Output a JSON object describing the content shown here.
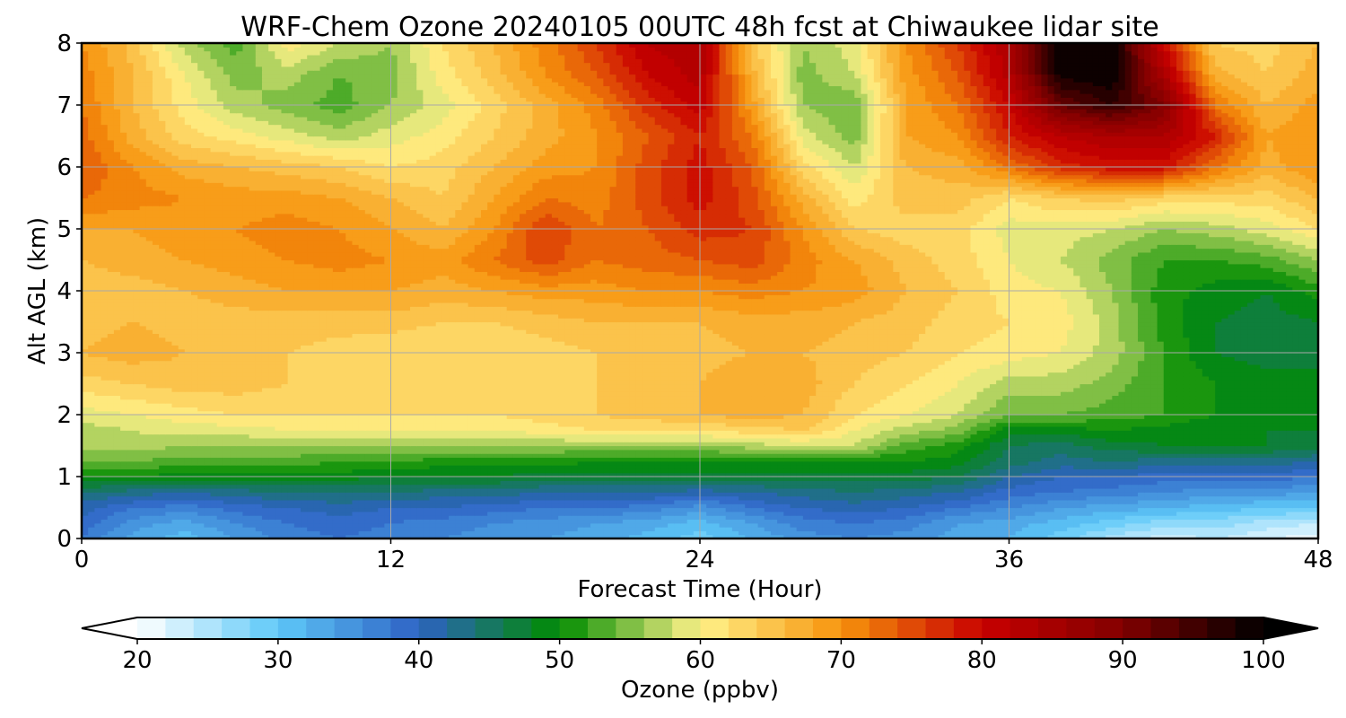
{
  "chart_data": {
    "type": "heatmap",
    "title": "WRF-Chem Ozone  20240105 00UTC 48h fcst at Chiwaukee lidar site",
    "xlabel": "Forecast Time (Hour)",
    "ylabel": "Alt AGL (km)",
    "xlim": [
      0,
      48
    ],
    "ylim": [
      0,
      8
    ],
    "xticks": [
      0,
      12,
      24,
      36,
      48
    ],
    "xtick_labels": [
      "0",
      "12",
      "24",
      "36",
      "48"
    ],
    "yticks": [
      0,
      1,
      2,
      3,
      4,
      5,
      6,
      7,
      8
    ],
    "ytick_labels": [
      "0",
      "1",
      "2",
      "3",
      "4",
      "5",
      "6",
      "7",
      "8"
    ],
    "grid": true,
    "colorbar": {
      "label": "Ozone  (ppbv)",
      "vmin": 20,
      "vmax": 100,
      "step": 2,
      "extend": "both",
      "ticks": [
        20,
        30,
        40,
        50,
        60,
        70,
        80,
        90,
        100
      ],
      "tick_labels": [
        "20",
        "30",
        "40",
        "50",
        "60",
        "70",
        "80",
        "90",
        "100"
      ],
      "color_stops": [
        {
          "v": 20,
          "c": "#ffffff"
        },
        {
          "v": 30,
          "c": "#5ec8f8"
        },
        {
          "v": 40,
          "c": "#2e62c4"
        },
        {
          "v": 50,
          "c": "#008c00"
        },
        {
          "v": 60,
          "c": "#fff28a"
        },
        {
          "v": 70,
          "c": "#f7940c"
        },
        {
          "v": 80,
          "c": "#c80000"
        },
        {
          "v": 90,
          "c": "#820000"
        },
        {
          "v": 100,
          "c": "#000000"
        }
      ]
    },
    "x": [
      0,
      2,
      4,
      6,
      8,
      10,
      12,
      14,
      16,
      18,
      20,
      22,
      24,
      26,
      28,
      30,
      32,
      34,
      36,
      38,
      40,
      42,
      44,
      46,
      48
    ],
    "y": [
      0,
      0.25,
      0.5,
      0.75,
      1,
      1.25,
      1.5,
      1.75,
      2,
      2.5,
      3,
      3.5,
      4,
      4.5,
      5,
      5.5,
      6,
      6.5,
      7,
      7.5,
      8
    ],
    "z": [
      [
        38,
        33,
        31,
        34,
        37,
        38,
        37,
        36,
        35,
        34,
        33,
        31,
        29,
        32,
        35,
        36,
        35,
        33,
        32,
        29,
        25,
        23,
        24,
        22,
        21
      ],
      [
        39,
        35,
        33,
        36,
        38,
        39,
        38,
        37,
        36,
        35,
        34,
        33,
        31,
        34,
        37,
        38,
        37,
        34,
        33,
        31,
        29,
        27,
        27,
        25,
        24
      ],
      [
        41,
        38,
        37,
        39,
        40,
        41,
        40,
        40,
        39,
        38,
        38,
        37,
        35,
        38,
        40,
        41,
        40,
        38,
        36,
        34,
        33,
        32,
        31,
        30,
        30
      ],
      [
        44,
        43,
        42,
        43,
        44,
        44,
        44,
        43,
        43,
        42,
        42,
        42,
        41,
        42,
        43,
        44,
        43,
        42,
        39,
        38,
        37,
        36,
        35,
        35,
        34
      ],
      [
        50,
        50,
        49,
        49,
        49,
        49,
        48,
        48,
        48,
        47,
        47,
        47,
        47,
        47,
        47,
        47,
        47,
        46,
        42,
        40,
        40,
        39,
        39,
        39,
        38
      ],
      [
        54,
        54,
        53,
        53,
        53,
        52,
        52,
        51,
        51,
        51,
        50,
        50,
        50,
        50,
        50,
        50,
        50,
        49,
        45,
        43,
        44,
        43,
        43,
        43,
        42
      ],
      [
        57,
        57,
        56,
        56,
        56,
        56,
        56,
        56,
        56,
        56,
        56,
        56,
        56,
        57,
        58,
        58,
        53,
        51,
        46,
        45,
        47,
        48,
        48,
        48,
        47
      ],
      [
        57,
        58,
        59,
        59,
        60,
        60,
        60,
        60,
        60,
        61,
        62,
        62,
        62,
        63,
        64,
        60,
        57,
        55,
        49,
        49,
        50,
        49,
        48,
        48,
        48
      ],
      [
        59,
        60,
        61,
        62,
        62,
        62,
        62,
        62,
        62,
        63,
        64,
        65,
        66,
        67,
        66,
        62,
        60,
        58,
        54,
        54,
        53,
        52,
        50,
        49,
        48
      ],
      [
        63,
        64,
        65,
        65,
        64,
        63,
        62,
        62,
        62,
        63,
        64,
        65,
        66,
        68,
        67,
        64,
        62,
        60,
        57,
        57,
        55,
        52,
        50,
        49,
        49
      ],
      [
        66,
        67,
        66,
        65,
        64,
        63,
        62,
        62,
        62,
        63,
        64,
        65,
        65,
        66,
        66,
        65,
        64,
        62,
        61,
        60,
        57,
        52,
        48,
        47,
        47
      ],
      [
        65,
        66,
        65,
        65,
        65,
        65,
        65,
        64,
        64,
        65,
        66,
        66,
        66,
        67,
        67,
        66,
        65,
        63,
        62,
        61,
        57,
        51,
        48,
        47,
        48
      ],
      [
        65,
        65,
        66,
        67,
        68,
        68,
        68,
        67,
        68,
        69,
        69,
        70,
        70,
        71,
        70,
        69,
        66,
        64,
        61,
        60,
        56,
        51,
        49,
        48,
        51
      ],
      [
        66,
        67,
        68,
        69,
        70,
        71,
        70,
        69,
        72,
        75,
        72,
        73,
        74,
        75,
        71,
        68,
        65,
        63,
        60,
        58,
        55,
        52,
        52,
        53,
        56
      ],
      [
        68,
        68,
        69,
        70,
        71,
        70,
        68,
        66,
        70,
        76,
        72,
        74,
        77,
        76,
        70,
        64,
        63,
        63,
        59,
        59,
        58,
        56,
        57,
        59,
        62
      ],
      [
        72,
        71,
        70,
        69,
        69,
        68,
        66,
        64,
        68,
        72,
        71,
        75,
        79,
        75,
        67,
        61,
        65,
        65,
        62,
        64,
        65,
        63,
        63,
        63,
        66
      ],
      [
        74,
        70,
        67,
        66,
        65,
        64,
        62,
        63,
        66,
        69,
        70,
        75,
        79,
        74,
        63,
        58,
        66,
        67,
        72,
        77,
        79,
        79,
        72,
        67,
        70
      ],
      [
        73,
        67,
        63,
        61,
        59,
        57,
        59,
        61,
        64,
        67,
        70,
        74,
        78,
        72,
        59,
        55,
        68,
        70,
        78,
        82,
        84,
        84,
        78,
        68,
        70
      ],
      [
        72,
        66,
        61,
        57,
        55,
        53,
        56,
        59,
        63,
        67,
        71,
        77,
        81,
        69,
        56,
        54,
        68,
        72,
        80,
        92,
        96,
        90,
        72,
        66,
        69
      ],
      [
        71,
        66,
        60,
        55,
        57,
        54,
        55,
        61,
        65,
        70,
        74,
        80,
        83,
        67,
        55,
        58,
        69,
        74,
        83,
        99,
        100,
        84,
        67,
        64,
        67
      ],
      [
        70,
        65,
        57,
        53,
        61,
        58,
        56,
        62,
        66,
        71,
        76,
        82,
        84,
        65,
        56,
        59,
        70,
        76,
        84,
        100,
        100,
        80,
        64,
        63,
        66
      ]
    ]
  }
}
